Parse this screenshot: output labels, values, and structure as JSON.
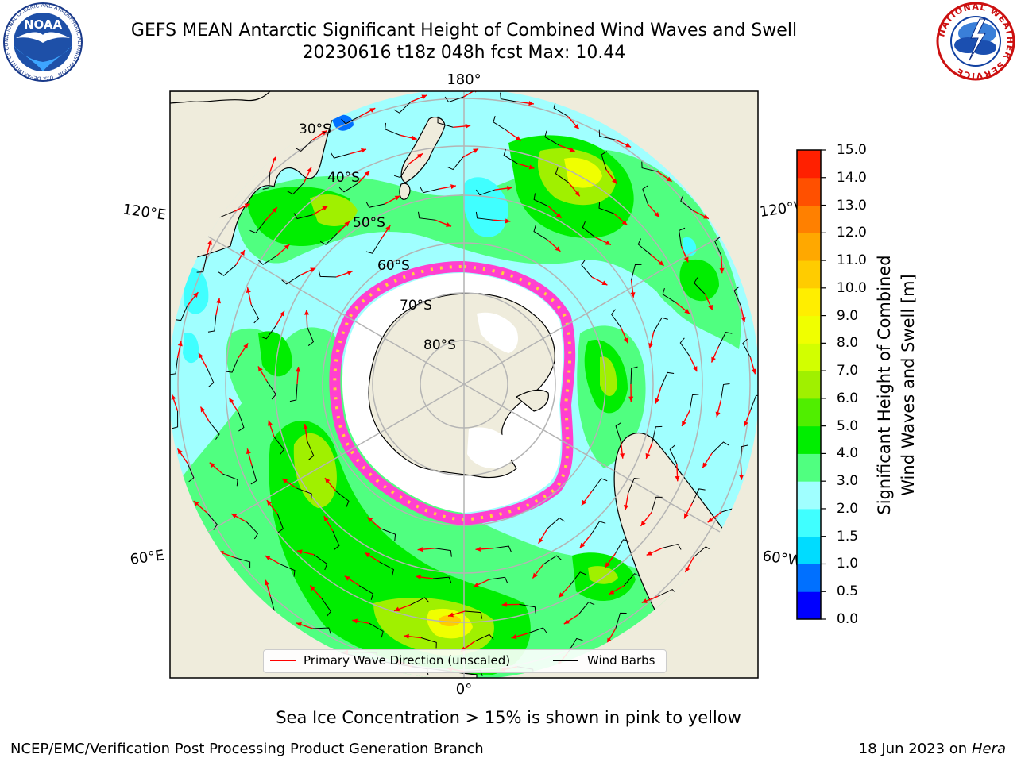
{
  "header": {
    "title_line1": "GEFS MEAN Antarctic Significant Height of Combined Wind Waves and Swell",
    "title_line2": "20230616 t18z 048h fcst   Max: 10.44"
  },
  "logos": {
    "noaa_text": "NOAA",
    "noaa_ring_text": "NATIONAL OCEANIC AND ATMOSPHERIC ADMINISTRATION · U.S. DEPARTMENT OF COMMERCE ·",
    "nws_ring_text": "NATIONAL WEATHER SERVICE"
  },
  "map": {
    "longitude_labels": {
      "top": "180°",
      "bottom": "0°",
      "upper_left": "120°E",
      "lower_left": "60°E",
      "upper_right": "120°W",
      "lower_right": "60°W"
    },
    "latitude_labels": [
      "30°S",
      "40°S",
      "50°S",
      "60°S",
      "70°S",
      "80°S"
    ],
    "legend": {
      "wave_direction": "Primary Wave Direction (unscaled)",
      "wind_barbs": "Wind Barbs"
    }
  },
  "colorbar": {
    "label_line1": "Significant Height of Combined",
    "label_line2": "Wind Waves and Swell [m]",
    "ticks": [
      "0.0",
      "0.5",
      "1.0",
      "1.5",
      "2.0",
      "3.0",
      "4.0",
      "5.0",
      "6.0",
      "7.0",
      "8.0",
      "9.0",
      "10.0",
      "11.0",
      "12.0",
      "13.0",
      "14.0",
      "15.0"
    ],
    "colors": [
      "#0000ff",
      "#0070ff",
      "#00dcff",
      "#40ffff",
      "#a0ffff",
      "#50ff80",
      "#00ee00",
      "#50ee00",
      "#a0f000",
      "#d2ff00",
      "#f0ff00",
      "#ffee00",
      "#ffcc00",
      "#ffa800",
      "#ff8000",
      "#ff5000",
      "#ff2000"
    ]
  },
  "colors": {
    "land": "#efecdc",
    "ice": "#ffffff",
    "ice_edge_pink": "#ff40d0",
    "ice_edge_yellow": "#ffd23c",
    "graticule": "#b4b4b4",
    "wave_arrow": "#ff0000",
    "barb": "#000000"
  },
  "footer": {
    "ice_note": "Sea Ice Concentration > 15% is shown in pink to yellow",
    "credit": "NCEP/EMC/Verification Post Processing Product Generation Branch",
    "date": "18 Jun 2023 on",
    "machine": "Hera"
  }
}
